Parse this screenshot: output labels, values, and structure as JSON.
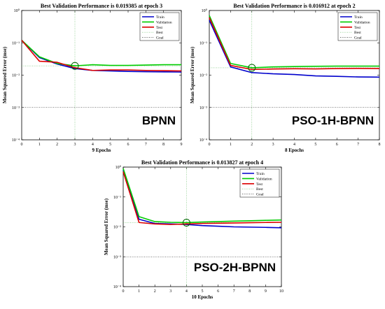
{
  "chart_data": [
    {
      "type": "line",
      "title": "Best Validation Performance is 0.019385 at epoch 3",
      "xlabel": "9 Epochs",
      "ylabel": "Mean Squared Error  (mse)",
      "annotation": "BPNN",
      "yscale": "log",
      "xlim": [
        0,
        9
      ],
      "ylim": [
        0.0001,
        1
      ],
      "x_ticks": [
        "0",
        "1",
        "2",
        "3",
        "4",
        "5",
        "6",
        "7",
        "8",
        "9"
      ],
      "y_ticks": [
        {
          "value": 0.0001,
          "label": "10⁻⁴"
        },
        {
          "value": 0.001,
          "label": "10⁻³"
        },
        {
          "value": 0.01,
          "label": "10⁻²"
        },
        {
          "value": 0.1,
          "label": "10⁻¹"
        },
        {
          "value": 1,
          "label": "10⁰"
        }
      ],
      "best": {
        "epoch": 3,
        "value": 0.019385
      },
      "goal": 0.001,
      "legend_placement": "top-right",
      "legend": [
        "Train",
        "Validation",
        "Test",
        "Best",
        "Goal"
      ],
      "series": [
        {
          "name": "Train",
          "color": "#0000cc",
          "x": [
            0,
            1,
            2,
            3,
            4,
            5,
            6,
            7,
            8,
            9
          ],
          "values": [
            0.12,
            0.035,
            0.022,
            0.016,
            0.014,
            0.0135,
            0.013,
            0.0128,
            0.0126,
            0.0125
          ]
        },
        {
          "name": "Validation",
          "color": "#00cc00",
          "x": [
            0,
            1,
            2,
            3,
            4,
            5,
            6,
            7,
            8,
            9
          ],
          "values": [
            0.12,
            0.037,
            0.023,
            0.019385,
            0.021,
            0.02,
            0.02,
            0.0205,
            0.021,
            0.021
          ]
        },
        {
          "name": "Test",
          "color": "#dd0000",
          "x": [
            0,
            1,
            2,
            3,
            4,
            5,
            6,
            7,
            8,
            9
          ],
          "values": [
            0.12,
            0.027,
            0.025,
            0.017,
            0.014,
            0.0145,
            0.0145,
            0.014,
            0.0138,
            0.0135
          ]
        }
      ]
    },
    {
      "type": "line",
      "title": "Best Validation Performance is 0.016912 at epoch 2",
      "xlabel": "8 Epochs",
      "ylabel": "Mean Squared Error  (mse)",
      "annotation": "PSO-1H-BPNN",
      "yscale": "log",
      "xlim": [
        0,
        8
      ],
      "ylim": [
        0.0001,
        1
      ],
      "x_ticks": [
        "0",
        "1",
        "2",
        "3",
        "4",
        "5",
        "6",
        "7",
        "8"
      ],
      "y_ticks": [
        {
          "value": 0.0001,
          "label": "10⁻⁴"
        },
        {
          "value": 0.001,
          "label": "10⁻³"
        },
        {
          "value": 0.01,
          "label": "10⁻²"
        },
        {
          "value": 0.1,
          "label": "10⁻¹"
        },
        {
          "value": 1,
          "label": "10⁰"
        }
      ],
      "best": {
        "epoch": 2,
        "value": 0.016912
      },
      "goal": 0.001,
      "legend_placement": "top-right",
      "legend": [
        "Train",
        "Validation",
        "Test",
        "Best",
        "Goal"
      ],
      "series": [
        {
          "name": "Train",
          "color": "#0000cc",
          "x": [
            0,
            1,
            2,
            3,
            4,
            5,
            6,
            7,
            8
          ],
          "values": [
            0.5,
            0.018,
            0.012,
            0.011,
            0.0105,
            0.0095,
            0.0092,
            0.0088,
            0.0087
          ]
        },
        {
          "name": "Validation",
          "color": "#00cc00",
          "x": [
            0,
            1,
            2,
            3,
            4,
            5,
            6,
            7,
            8
          ],
          "values": [
            0.7,
            0.023,
            0.016912,
            0.018,
            0.0185,
            0.0188,
            0.019,
            0.019,
            0.019
          ]
        },
        {
          "name": "Test",
          "color": "#dd0000",
          "x": [
            0,
            1,
            2,
            3,
            4,
            5,
            6,
            7,
            8
          ],
          "values": [
            0.6,
            0.02,
            0.015,
            0.0155,
            0.0158,
            0.0156,
            0.016,
            0.0162,
            0.016
          ]
        }
      ]
    },
    {
      "type": "line",
      "title": "Best Validation Performance is 0.013827 at epoch 4",
      "xlabel": "10 Epochs",
      "ylabel": "Mean Squared Error  (mse)",
      "annotation": "PSO-2H-BPNN",
      "yscale": "log",
      "xlim": [
        0,
        10
      ],
      "ylim": [
        0.0001,
        1
      ],
      "x_ticks": [
        "0",
        "1",
        "2",
        "3",
        "4",
        "5",
        "6",
        "7",
        "8",
        "9",
        "10"
      ],
      "y_ticks": [
        {
          "value": 0.0001,
          "label": "10⁻⁴"
        },
        {
          "value": 0.001,
          "label": "10⁻³"
        },
        {
          "value": 0.01,
          "label": "10⁻²"
        },
        {
          "value": 0.1,
          "label": "10⁻¹"
        },
        {
          "value": 1,
          "label": "10⁰"
        }
      ],
      "best": {
        "epoch": 4,
        "value": 0.013827
      },
      "goal": 0.001,
      "legend_placement": "top-right",
      "legend": [
        "Train",
        "Validation",
        "Test",
        "Best",
        "Goal"
      ],
      "series": [
        {
          "name": "Train",
          "color": "#0000cc",
          "x": [
            0,
            1,
            2,
            3,
            4,
            5,
            6,
            7,
            8,
            9,
            10
          ],
          "values": [
            0.8,
            0.018,
            0.013,
            0.0125,
            0.012,
            0.011,
            0.0105,
            0.01,
            0.0098,
            0.0096,
            0.0093
          ]
        },
        {
          "name": "Validation",
          "color": "#00cc00",
          "x": [
            0,
            1,
            2,
            3,
            4,
            5,
            6,
            7,
            8,
            9,
            10
          ],
          "values": [
            0.9,
            0.022,
            0.015,
            0.0142,
            0.013827,
            0.0145,
            0.015,
            0.0155,
            0.016,
            0.0165,
            0.017
          ]
        },
        {
          "name": "Test",
          "color": "#dd0000",
          "x": [
            0,
            1,
            2,
            3,
            4,
            5,
            6,
            7,
            8,
            9,
            10
          ],
          "values": [
            0.7,
            0.014,
            0.0125,
            0.012,
            0.0125,
            0.013,
            0.0132,
            0.0135,
            0.0138,
            0.014,
            0.0142
          ]
        }
      ]
    }
  ]
}
